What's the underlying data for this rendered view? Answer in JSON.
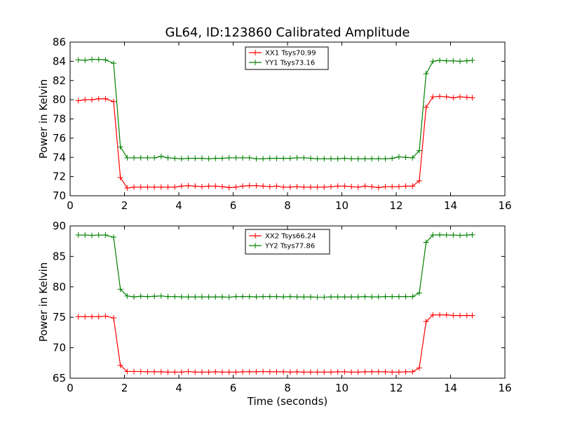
{
  "chart_data": [
    {
      "type": "line",
      "title": "GL64, ID:123860 Calibrated Amplitude",
      "xlabel": "",
      "ylabel": "Power in Kelvin",
      "xlim": [
        0,
        16
      ],
      "ylim": [
        70,
        86
      ],
      "xticks": [
        0,
        2,
        4,
        6,
        8,
        10,
        12,
        14,
        16
      ],
      "yticks": [
        70,
        72,
        74,
        76,
        78,
        80,
        82,
        84,
        86
      ],
      "legend_position": "top-center",
      "x": [
        0.3,
        0.55,
        0.8,
        1.05,
        1.3,
        1.6,
        1.85,
        2.1,
        2.35,
        2.6,
        2.85,
        3.1,
        3.35,
        3.6,
        3.85,
        4.1,
        4.35,
        4.6,
        4.85,
        5.1,
        5.35,
        5.6,
        5.85,
        6.1,
        6.35,
        6.6,
        6.85,
        7.1,
        7.35,
        7.6,
        7.85,
        8.1,
        8.35,
        8.6,
        8.85,
        9.1,
        9.35,
        9.6,
        9.85,
        10.1,
        10.35,
        10.6,
        10.85,
        11.1,
        11.35,
        11.6,
        11.85,
        12.1,
        12.35,
        12.6,
        12.85,
        13.1,
        13.35,
        13.6,
        13.85,
        14.1,
        14.35,
        14.6,
        14.8
      ],
      "series": [
        {
          "name": "XX1 Tsys70.99",
          "color": "#ff0000",
          "values": [
            79.9,
            80.0,
            80.0,
            80.1,
            80.1,
            79.8,
            71.9,
            70.8,
            70.9,
            70.9,
            70.9,
            70.9,
            70.9,
            70.9,
            70.9,
            71.0,
            71.05,
            71.0,
            70.95,
            71.0,
            71.0,
            70.95,
            70.85,
            70.9,
            71.0,
            71.05,
            71.05,
            71.0,
            70.95,
            71.0,
            70.9,
            70.9,
            70.95,
            70.9,
            70.9,
            70.9,
            70.9,
            70.95,
            71.0,
            71.0,
            70.95,
            70.9,
            71.0,
            70.95,
            70.85,
            70.95,
            70.95,
            70.95,
            71.0,
            71.0,
            71.55,
            79.2,
            80.3,
            80.35,
            80.3,
            80.2,
            80.3,
            80.25,
            80.2
          ]
        },
        {
          "name": "YY1 Tsys73.16",
          "color": "#008000",
          "values": [
            84.15,
            84.1,
            84.2,
            84.2,
            84.15,
            83.8,
            75.1,
            73.95,
            73.95,
            73.95,
            73.95,
            73.95,
            74.1,
            73.95,
            73.9,
            73.85,
            73.9,
            73.9,
            73.9,
            73.85,
            73.9,
            73.9,
            73.95,
            73.95,
            73.95,
            73.95,
            73.85,
            73.85,
            73.9,
            73.9,
            73.9,
            73.9,
            73.95,
            73.95,
            73.9,
            73.85,
            73.85,
            73.85,
            73.85,
            73.9,
            73.85,
            73.85,
            73.85,
            73.85,
            73.85,
            73.85,
            73.9,
            74.05,
            74.0,
            73.95,
            74.7,
            82.7,
            84.0,
            84.1,
            84.05,
            84.05,
            84.0,
            84.05,
            84.1
          ]
        }
      ]
    },
    {
      "type": "line",
      "title": "",
      "xlabel": "Time (seconds)",
      "ylabel": "Power in Kelvin",
      "xlim": [
        0,
        16
      ],
      "ylim": [
        65,
        90
      ],
      "xticks": [
        0,
        2,
        4,
        6,
        8,
        10,
        12,
        14,
        16
      ],
      "yticks": [
        65,
        70,
        75,
        80,
        85,
        90
      ],
      "legend_position": "top-center",
      "x": [
        0.3,
        0.55,
        0.8,
        1.05,
        1.3,
        1.6,
        1.85,
        2.1,
        2.35,
        2.6,
        2.85,
        3.1,
        3.35,
        3.6,
        3.85,
        4.1,
        4.35,
        4.6,
        4.85,
        5.1,
        5.35,
        5.6,
        5.85,
        6.1,
        6.35,
        6.6,
        6.85,
        7.1,
        7.35,
        7.6,
        7.85,
        8.1,
        8.35,
        8.6,
        8.85,
        9.1,
        9.35,
        9.6,
        9.85,
        10.1,
        10.35,
        10.6,
        10.85,
        11.1,
        11.35,
        11.6,
        11.85,
        12.1,
        12.35,
        12.6,
        12.85,
        13.1,
        13.35,
        13.6,
        13.85,
        14.1,
        14.35,
        14.6,
        14.8
      ],
      "series": [
        {
          "name": "XX2 Tsys66.24",
          "color": "#ff0000",
          "values": [
            75.1,
            75.1,
            75.1,
            75.1,
            75.2,
            74.9,
            67.1,
            66.1,
            66.1,
            66.1,
            66.05,
            66.05,
            66.05,
            66.0,
            66.0,
            66.0,
            66.1,
            66.0,
            66.0,
            66.0,
            66.05,
            66.0,
            66.0,
            66.0,
            66.05,
            66.05,
            66.05,
            66.1,
            66.05,
            66.05,
            66.05,
            66.0,
            66.05,
            66.0,
            66.0,
            66.0,
            66.0,
            66.0,
            66.05,
            66.05,
            66.0,
            66.0,
            66.05,
            66.05,
            66.05,
            66.05,
            66.0,
            66.0,
            66.05,
            66.05,
            66.7,
            74.3,
            75.4,
            75.4,
            75.4,
            75.3,
            75.3,
            75.3,
            75.3
          ]
        },
        {
          "name": "YY2 Tsys77.86",
          "color": "#008000",
          "values": [
            88.5,
            88.5,
            88.45,
            88.5,
            88.5,
            88.15,
            79.6,
            78.5,
            78.35,
            78.45,
            78.4,
            78.45,
            78.5,
            78.4,
            78.4,
            78.35,
            78.35,
            78.35,
            78.35,
            78.35,
            78.35,
            78.35,
            78.3,
            78.4,
            78.4,
            78.4,
            78.35,
            78.4,
            78.4,
            78.4,
            78.35,
            78.4,
            78.35,
            78.35,
            78.35,
            78.3,
            78.3,
            78.35,
            78.35,
            78.35,
            78.35,
            78.35,
            78.4,
            78.35,
            78.35,
            78.4,
            78.4,
            78.4,
            78.4,
            78.4,
            79.0,
            87.3,
            88.5,
            88.55,
            88.5,
            88.5,
            88.45,
            88.5,
            88.55
          ]
        }
      ]
    }
  ]
}
